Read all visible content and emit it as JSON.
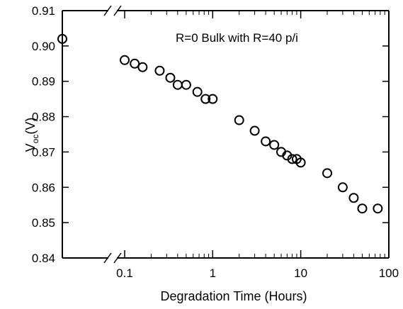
{
  "chart_data": {
    "type": "scatter",
    "x_scale": "log",
    "xlabel": "Degradation Time (Hours)",
    "ylabel": "V_oc(V)",
    "ylabel_main": "V",
    "ylabel_sub": "oc",
    "ylabel_unit": "(V)",
    "ylim": [
      0.84,
      0.91
    ],
    "xlim_decades": [
      0.1,
      100
    ],
    "x_tick_labels": [
      "0.1",
      "1",
      "10",
      "100"
    ],
    "x_tick_values": [
      0.1,
      1,
      10,
      100
    ],
    "y_tick_labels": [
      "0.84",
      "0.85",
      "0.86",
      "0.87",
      "0.88",
      "0.89",
      "0.90",
      "0.91"
    ],
    "y_tick_values": [
      0.84,
      0.85,
      0.86,
      0.87,
      0.88,
      0.89,
      0.9,
      0.91
    ],
    "annotation": "R=0 Bulk with R=40 p/i",
    "axis_break": true,
    "marker": "open-circle",
    "grid": false,
    "series": [
      {
        "points": [
          {
            "x": 0,
            "y": 0.902
          },
          {
            "x": 0.1,
            "y": 0.896
          },
          {
            "x": 0.13,
            "y": 0.895
          },
          {
            "x": 0.16,
            "y": 0.894
          },
          {
            "x": 0.25,
            "y": 0.893
          },
          {
            "x": 0.33,
            "y": 0.891
          },
          {
            "x": 0.4,
            "y": 0.889
          },
          {
            "x": 0.5,
            "y": 0.889
          },
          {
            "x": 0.67,
            "y": 0.887
          },
          {
            "x": 0.83,
            "y": 0.885
          },
          {
            "x": 1,
            "y": 0.885
          },
          {
            "x": 2,
            "y": 0.879
          },
          {
            "x": 3,
            "y": 0.876
          },
          {
            "x": 4,
            "y": 0.873
          },
          {
            "x": 5,
            "y": 0.872
          },
          {
            "x": 6,
            "y": 0.87
          },
          {
            "x": 7,
            "y": 0.869
          },
          {
            "x": 8,
            "y": 0.868
          },
          {
            "x": 9,
            "y": 0.868
          },
          {
            "x": 10,
            "y": 0.867
          },
          {
            "x": 20,
            "y": 0.864
          },
          {
            "x": 30,
            "y": 0.86
          },
          {
            "x": 40,
            "y": 0.857
          },
          {
            "x": 50,
            "y": 0.854
          },
          {
            "x": 75,
            "y": 0.854
          }
        ]
      }
    ]
  }
}
